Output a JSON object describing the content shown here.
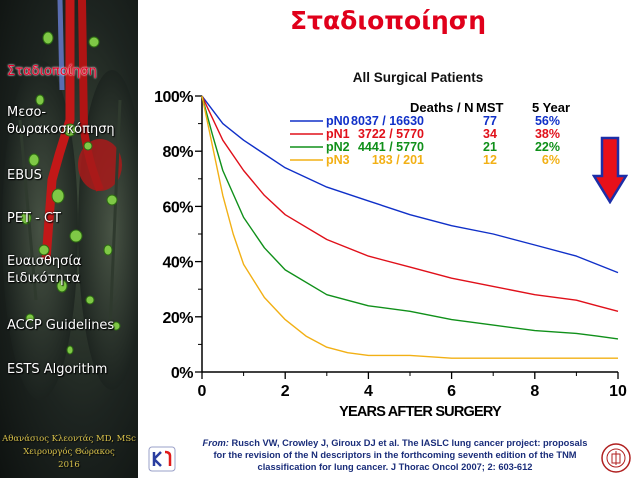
{
  "slide": {
    "title": "Σταδιοποίηση"
  },
  "sidebar": {
    "items": [
      {
        "label": "Σταδιοποίηση",
        "active": true
      },
      {
        "label": "Μεσο-\nθωρακοσκόπηση",
        "active": false
      },
      {
        "label": "EBUS",
        "active": false
      },
      {
        "label": "PET - CT",
        "active": false
      },
      {
        "label": "Ευαισθησία\nΕιδικότητα",
        "active": false
      },
      {
        "label": "ACCP Guidelines",
        "active": false
      },
      {
        "label": "ESTS Algorithm",
        "active": false
      }
    ],
    "author": {
      "name": "Αθανάσιος Κλεοντάς MD, MSc",
      "role": "Χειρουργός Θώρακος",
      "year": "2016"
    }
  },
  "credit": {
    "from_label": "From:",
    "text": "Rusch VW, Crowley J, Giroux DJ et al. The IASLC lung cancer project: proposals for the revision of the N descriptors in the forthcoming seventh edition of the TNM classification for lung cancer. J Thorac Oncol 2007; 2: 603-612"
  },
  "chart_data": {
    "type": "line",
    "title": "All Surgical Patients",
    "xlabel": "YEARS AFTER SURGERY",
    "ylabel": "",
    "xlim": [
      0,
      10
    ],
    "ylim": [
      0,
      100
    ],
    "xticks": [
      "0",
      "2",
      "4",
      "6",
      "8",
      "10"
    ],
    "yticks": [
      "0%",
      "20%",
      "40%",
      "60%",
      "80%",
      "100%"
    ],
    "legend_headers": [
      "Deaths / N",
      "MST",
      "5 Year"
    ],
    "legend_position": "top-right",
    "series": [
      {
        "name": "pN0",
        "color": "#1030c8",
        "deaths_n": "8037 / 16630",
        "mst": "77",
        "five_year": "56%",
        "x": [
          0,
          0.25,
          0.5,
          1,
          1.5,
          2,
          3,
          4,
          5,
          6,
          7,
          8,
          9,
          9.5,
          10
        ],
        "y": [
          100,
          95,
          90,
          84,
          79,
          74,
          67,
          62,
          57,
          53,
          50,
          46,
          42,
          39,
          36
        ]
      },
      {
        "name": "pN1",
        "color": "#e0101a",
        "deaths_n": "3722 / 5770",
        "mst": "34",
        "five_year": "38%",
        "x": [
          0,
          0.25,
          0.5,
          1,
          1.5,
          2,
          3,
          4,
          5,
          6,
          7,
          8,
          9,
          9.5,
          10
        ],
        "y": [
          100,
          92,
          84,
          73,
          64,
          57,
          48,
          42,
          38,
          34,
          31,
          28,
          26,
          24,
          22
        ]
      },
      {
        "name": "pN2",
        "color": "#10901a",
        "deaths_n": "4441 / 5770",
        "mst": "21",
        "five_year": "22%",
        "x": [
          0,
          0.25,
          0.5,
          1,
          1.5,
          2,
          3,
          4,
          5,
          6,
          7,
          8,
          9,
          9.5,
          10
        ],
        "y": [
          100,
          86,
          73,
          56,
          45,
          37,
          28,
          24,
          22,
          19,
          17,
          15,
          14,
          13,
          12
        ]
      },
      {
        "name": "pN3",
        "color": "#f2b015",
        "deaths_n": "183 / 201",
        "mst": "12",
        "five_year": "6%",
        "x": [
          0,
          0.25,
          0.5,
          0.75,
          1,
          1.5,
          2,
          2.5,
          3,
          3.5,
          4,
          5,
          6,
          8,
          10
        ],
        "y": [
          100,
          82,
          64,
          50,
          39,
          27,
          19,
          13,
          9,
          7,
          6,
          6,
          5,
          5,
          5
        ]
      }
    ]
  },
  "colors": {
    "title_red": "#e0001b",
    "credit_blue": "#1a2d7a",
    "arrow_red": "#e8101a",
    "arrow_blue": "#1c2ea8"
  }
}
